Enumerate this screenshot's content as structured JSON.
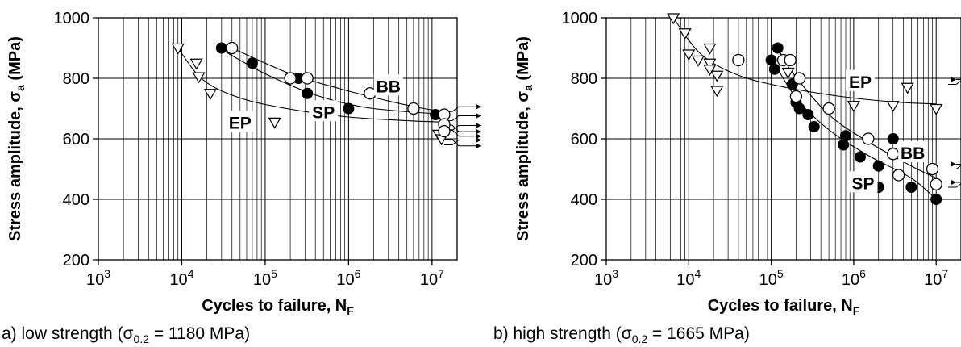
{
  "chart_data": [
    {
      "type": "scatter",
      "panel": "a",
      "caption_prefix": "a) low strength (σ",
      "caption_sub": "0.2",
      "caption_suffix": " = 1180 MPa)",
      "xlabel": "Cycles to failure, N",
      "xlabel_sub": "F",
      "ylabel": "Stress amplitude, σ",
      "ylabel_sub": "a",
      "ylabel_unit": " (MPa)",
      "x_scale": "log",
      "xlim": [
        1000,
        20000000
      ],
      "ylim": [
        200,
        1000
      ],
      "y_ticks": [
        "200",
        "400",
        "600",
        "800",
        "1000"
      ],
      "x_ticks": [
        {
          "base": "10",
          "exp": "3"
        },
        {
          "base": "10",
          "exp": "4"
        },
        {
          "base": "10",
          "exp": "5"
        },
        {
          "base": "10",
          "exp": "6"
        },
        {
          "base": "10",
          "exp": "7"
        }
      ],
      "grid": true,
      "series": [
        {
          "name": "EP",
          "marker": "triangle-down-open",
          "points": [
            [
              9000,
              900
            ],
            [
              15000,
              850
            ],
            [
              16000,
              805
            ],
            [
              22000,
              750
            ],
            [
              130000,
              655
            ],
            [
              12000000,
              615
            ],
            [
              13000000,
              600
            ]
          ],
          "runouts": [
            [
              14000000,
              628
            ],
            [
              14000000,
              598
            ],
            [
              14000000,
              580
            ]
          ],
          "curve": [
            [
              9000,
              900
            ],
            [
              18000,
              795
            ],
            [
              50000,
              735
            ],
            [
              200000,
              698
            ],
            [
              1000000,
              672
            ],
            [
              5000000,
              660
            ],
            [
              14000000,
              655
            ]
          ]
        },
        {
          "name": "SP",
          "marker": "circle-filled",
          "points": [
            [
              30000,
              900
            ],
            [
              70000,
              850
            ],
            [
              250000,
              800
            ],
            [
              320000,
              750
            ],
            [
              1000000,
              700
            ],
            [
              11000000,
              680
            ]
          ],
          "runouts": [
            [
              14000000,
              660
            ],
            [
              14000000,
              645
            ]
          ],
          "curve": [
            [
              30000,
              895
            ],
            [
              100000,
              815
            ],
            [
              400000,
              745
            ],
            [
              1500000,
              705
            ],
            [
              6000000,
              688
            ],
            [
              14000000,
              682
            ]
          ]
        },
        {
          "name": "BB",
          "marker": "circle-open",
          "points": [
            [
              40000,
              900
            ],
            [
              200000,
              800
            ],
            [
              320000,
              800
            ],
            [
              1800000,
              750
            ],
            [
              6000000,
              700
            ],
            [
              14000000,
              680
            ],
            [
              14000000,
              648
            ],
            [
              14000000,
              625
            ]
          ],
          "runouts": [
            [
              14000000,
              690
            ],
            [
              14000000,
              630
            ]
          ],
          "curve": [
            [
              40000,
              900
            ],
            [
              200000,
              815
            ],
            [
              800000,
              765
            ],
            [
              3000000,
              725
            ],
            [
              8000000,
              700
            ],
            [
              14000000,
              690
            ]
          ]
        }
      ],
      "labels": [
        {
          "text": "BB",
          "x": 3000000,
          "y": 775
        },
        {
          "text": "SP",
          "x": 500000,
          "y": 690
        },
        {
          "text": "EP",
          "x": 50000,
          "y": 655
        }
      ]
    },
    {
      "type": "scatter",
      "panel": "b",
      "caption_prefix": "b) high strength (σ",
      "caption_sub": "0.2",
      "caption_suffix": " = 1665 MPa)",
      "xlabel": "Cycles to failure, N",
      "xlabel_sub": "F",
      "ylabel": "Stress amplitude, σ",
      "ylabel_sub": "a",
      "ylabel_unit": " (MPa)",
      "x_scale": "log",
      "xlim": [
        1000,
        20000000
      ],
      "ylim": [
        200,
        1000
      ],
      "y_ticks": [
        "200",
        "400",
        "600",
        "800",
        "1000"
      ],
      "x_ticks": [
        {
          "base": "10",
          "exp": "3"
        },
        {
          "base": "10",
          "exp": "4"
        },
        {
          "base": "10",
          "exp": "5"
        },
        {
          "base": "10",
          "exp": "6"
        },
        {
          "base": "10",
          "exp": "7"
        }
      ],
      "grid": true,
      "series": [
        {
          "name": "EP",
          "marker": "triangle-down-open",
          "points": [
            [
              6500,
              1000
            ],
            [
              9000,
              950
            ],
            [
              10000,
              880
            ],
            [
              13000,
              860
            ],
            [
              18000,
              900
            ],
            [
              18000,
              850
            ],
            [
              18000,
              830
            ],
            [
              22000,
              810
            ],
            [
              22000,
              760
            ],
            [
              160000,
              820
            ],
            [
              1000000,
              710
            ],
            [
              3000000,
              710
            ],
            [
              4500000,
              770
            ],
            [
              10000000,
              700
            ]
          ],
          "runouts": [
            [
              14000000,
              780
            ]
          ],
          "curve": [
            [
              6500,
              1000
            ],
            [
              14000,
              880
            ],
            [
              40000,
              810
            ],
            [
              150000,
              770
            ],
            [
              700000,
              740
            ],
            [
              3000000,
              722
            ],
            [
              10000000,
              715
            ]
          ]
        },
        {
          "name": "SP",
          "marker": "circle-filled",
          "points": [
            [
              100000,
              860
            ],
            [
              110000,
              830
            ],
            [
              120000,
              900
            ],
            [
              180000,
              780
            ],
            [
              200000,
              720
            ],
            [
              220000,
              700
            ],
            [
              280000,
              680
            ],
            [
              330000,
              640
            ],
            [
              750000,
              580
            ],
            [
              800000,
              610
            ],
            [
              1200000,
              540
            ],
            [
              2000000,
              510
            ],
            [
              2000000,
              440
            ],
            [
              3000000,
              600
            ],
            [
              5000000,
              440
            ],
            [
              10000000,
              400
            ]
          ],
          "runouts": [
            [
              14000000,
              440
            ]
          ],
          "curve": [
            [
              100000,
              870
            ],
            [
              200000,
              735
            ],
            [
              500000,
              630
            ],
            [
              1500000,
              545
            ],
            [
              5000000,
              470
            ],
            [
              10000000,
              400
            ]
          ]
        },
        {
          "name": "BB",
          "marker": "circle-open",
          "points": [
            [
              40000,
              860
            ],
            [
              140000,
              860
            ],
            [
              170000,
              860
            ],
            [
              200000,
              740
            ],
            [
              220000,
              800
            ],
            [
              500000,
              700
            ],
            [
              1500000,
              600
            ],
            [
              3000000,
              550
            ],
            [
              3500000,
              480
            ],
            [
              9000000,
              500
            ],
            [
              10000000,
              450
            ]
          ],
          "runouts": [
            [
              14000000,
              500
            ]
          ],
          "curve": [
            [
              120000,
              900
            ],
            [
              180000,
              820
            ],
            [
              500000,
              680
            ],
            [
              1500000,
              590
            ],
            [
              5000000,
              510
            ],
            [
              10000000,
              470
            ]
          ]
        }
      ],
      "labels": [
        {
          "text": "EP",
          "x": 1200000,
          "y": 790
        },
        {
          "text": "BB",
          "x": 5200000,
          "y": 555
        },
        {
          "text": "SP",
          "x": 1300000,
          "y": 455
        }
      ]
    }
  ]
}
